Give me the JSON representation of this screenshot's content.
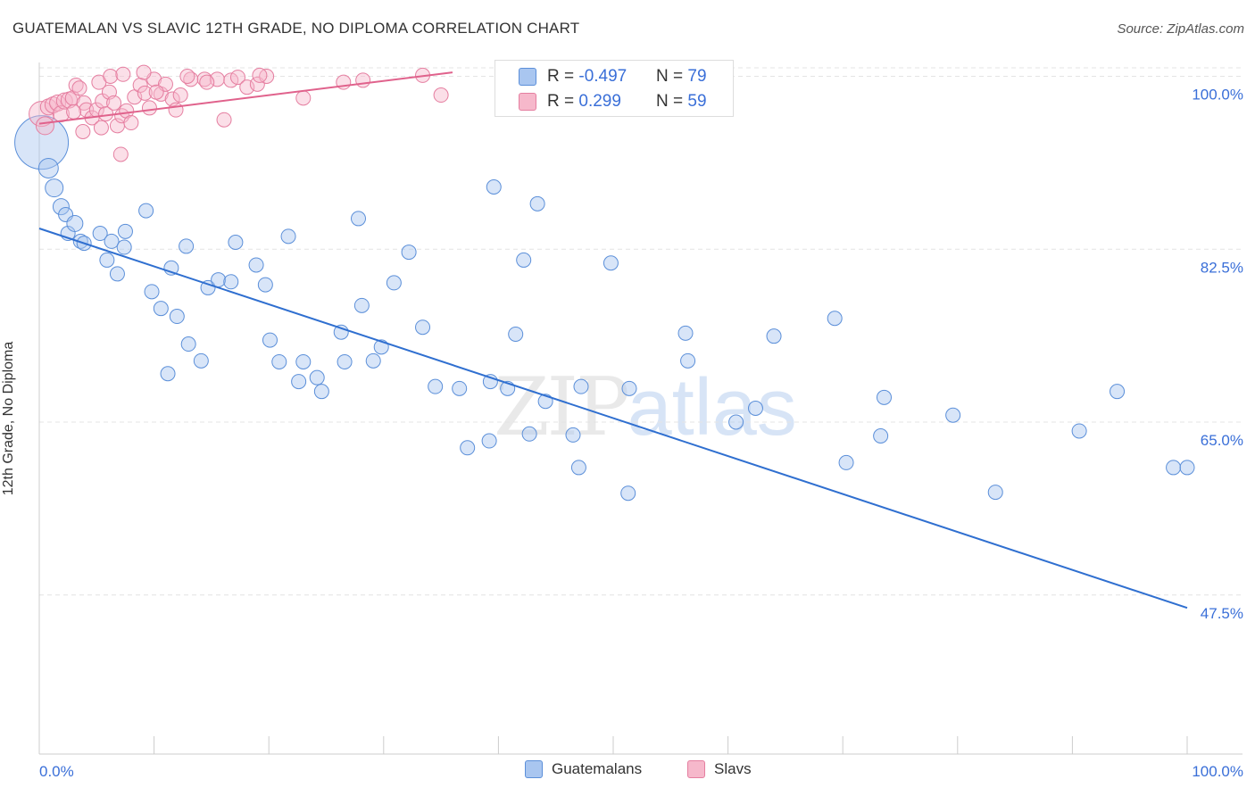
{
  "header": {
    "title": "GUATEMALAN VS SLAVIC 12TH GRADE, NO DIPLOMA CORRELATION CHART",
    "source": "Source: ZipAtlas.com"
  },
  "watermark": {
    "part1": "ZIP",
    "part2": "atlas"
  },
  "colors": {
    "blue_fill": "#a9c6f0",
    "blue_stroke": "#5b8fd9",
    "blue_line": "#2f6fd0",
    "pink_fill": "#f6b8cb",
    "pink_stroke": "#e57ea0",
    "pink_line": "#e0628c",
    "axis_text": "#3a6fd8",
    "grid": "#e4e4e4"
  },
  "stats": [
    {
      "label": "R = ",
      "r": "-0.497",
      "n_label": "N = ",
      "n": "79",
      "swatch": "blue"
    },
    {
      "label": "R = ",
      "r": "0.299",
      "n_label": "N = ",
      "n": "59",
      "swatch": "pink"
    }
  ],
  "chart_data": {
    "type": "scatter",
    "title": "GUATEMALAN VS SLAVIC 12TH GRADE, NO DIPLOMA CORRELATION CHART",
    "ylabel": "12th Grade, No Diploma",
    "xlabel": "",
    "x_tick_labels": [
      "0.0%",
      "100.0%"
    ],
    "y_tick_labels": [
      "100.0%",
      "82.5%",
      "65.0%",
      "47.5%"
    ],
    "y_ticks": [
      100.0,
      82.5,
      65.0,
      47.5
    ],
    "xlim": [
      0,
      100
    ],
    "ylim": [
      31.4,
      101.4
    ],
    "grid": true,
    "legend_placement": "bottom-center",
    "series": [
      {
        "name": "Guatemalans",
        "color": "blue",
        "trend": {
          "x": [
            0,
            100
          ],
          "y": [
            84.6,
            46.2
          ]
        },
        "points": [
          [
            0.2,
            93.3,
            30
          ],
          [
            0.8,
            90.7,
            11
          ],
          [
            1.3,
            88.7,
            10
          ],
          [
            1.9,
            86.8,
            9
          ],
          [
            2.3,
            86.0,
            8
          ],
          [
            2.5,
            84.1,
            8
          ],
          [
            3.1,
            85.1,
            9
          ],
          [
            3.6,
            83.3,
            8
          ],
          [
            3.9,
            83.1,
            8
          ],
          [
            5.3,
            84.1,
            8
          ],
          [
            6.3,
            83.3,
            8
          ],
          [
            7.5,
            84.3,
            8
          ],
          [
            5.9,
            81.4,
            8
          ],
          [
            6.8,
            80.0,
            8
          ],
          [
            7.4,
            82.7,
            8
          ],
          [
            9.3,
            86.4,
            8
          ],
          [
            9.8,
            78.2,
            8
          ],
          [
            10.6,
            76.5,
            8
          ],
          [
            11.5,
            80.6,
            8
          ],
          [
            12.0,
            75.7,
            8
          ],
          [
            12.8,
            82.8,
            8
          ],
          [
            13.0,
            72.9,
            8
          ],
          [
            14.1,
            71.2,
            8
          ],
          [
            11.2,
            69.9,
            8
          ],
          [
            14.7,
            78.6,
            8
          ],
          [
            15.6,
            79.4,
            8
          ],
          [
            16.7,
            79.2,
            8
          ],
          [
            17.1,
            83.2,
            8
          ],
          [
            18.9,
            80.9,
            8
          ],
          [
            19.7,
            78.9,
            8
          ],
          [
            20.1,
            73.3,
            8
          ],
          [
            20.9,
            71.1,
            8
          ],
          [
            21.7,
            83.8,
            8
          ],
          [
            22.6,
            69.1,
            8
          ],
          [
            23.0,
            71.1,
            8
          ],
          [
            24.2,
            69.5,
            8
          ],
          [
            24.6,
            68.1,
            8
          ],
          [
            26.6,
            71.1,
            8
          ],
          [
            26.3,
            74.1,
            8
          ],
          [
            27.8,
            85.6,
            8
          ],
          [
            28.1,
            76.8,
            8
          ],
          [
            29.1,
            71.2,
            8
          ],
          [
            29.8,
            72.6,
            8
          ],
          [
            30.9,
            79.1,
            8
          ],
          [
            32.2,
            82.2,
            8
          ],
          [
            33.4,
            74.6,
            8
          ],
          [
            34.5,
            68.6,
            8
          ],
          [
            36.6,
            68.4,
            8
          ],
          [
            37.3,
            62.4,
            8
          ],
          [
            39.6,
            88.8,
            8
          ],
          [
            39.2,
            63.1,
            8
          ],
          [
            39.3,
            69.1,
            8
          ],
          [
            40.8,
            68.4,
            8
          ],
          [
            41.5,
            73.9,
            8
          ],
          [
            42.2,
            81.4,
            8
          ],
          [
            42.7,
            63.8,
            8
          ],
          [
            43.4,
            87.1,
            8
          ],
          [
            44.1,
            67.1,
            8
          ],
          [
            46.5,
            63.7,
            8
          ],
          [
            47.0,
            60.4,
            8
          ],
          [
            47.2,
            68.6,
            8
          ],
          [
            49.8,
            81.1,
            8
          ],
          [
            51.3,
            57.8,
            8
          ],
          [
            51.4,
            68.4,
            8
          ],
          [
            56.5,
            71.2,
            8
          ],
          [
            56.3,
            74.0,
            8
          ],
          [
            60.7,
            65.0,
            8
          ],
          [
            62.4,
            66.4,
            8
          ],
          [
            64.0,
            73.7,
            8
          ],
          [
            69.3,
            75.5,
            8
          ],
          [
            70.3,
            60.9,
            8
          ],
          [
            73.3,
            63.6,
            8
          ],
          [
            73.6,
            67.5,
            8
          ],
          [
            79.6,
            65.7,
            8
          ],
          [
            83.3,
            57.9,
            8
          ],
          [
            90.6,
            64.1,
            8
          ],
          [
            93.9,
            68.1,
            8
          ],
          [
            98.8,
            60.4,
            8
          ],
          [
            100.0,
            60.4,
            8
          ]
        ]
      },
      {
        "name": "Slavs",
        "color": "pink",
        "trend": {
          "x": [
            0,
            36
          ],
          "y": [
            95.2,
            100.4
          ]
        },
        "points": [
          [
            0.2,
            96.2,
            14
          ],
          [
            0.5,
            95.0,
            10
          ],
          [
            0.8,
            96.9,
            9
          ],
          [
            1.2,
            97.1,
            9
          ],
          [
            1.6,
            97.3,
            9
          ],
          [
            1.9,
            96.2,
            9
          ],
          [
            2.2,
            97.5,
            9
          ],
          [
            2.6,
            97.6,
            9
          ],
          [
            2.9,
            97.8,
            8
          ],
          [
            3.2,
            99.1,
            8
          ],
          [
            3.5,
            98.8,
            8
          ],
          [
            3.9,
            97.3,
            8
          ],
          [
            4.1,
            96.6,
            8
          ],
          [
            4.6,
            95.8,
            8
          ],
          [
            5.0,
            96.6,
            8
          ],
          [
            5.5,
            97.5,
            8
          ],
          [
            5.8,
            96.2,
            8
          ],
          [
            6.1,
            98.4,
            8
          ],
          [
            6.5,
            97.3,
            8
          ],
          [
            6.8,
            95.0,
            8
          ],
          [
            7.2,
            96.0,
            8
          ],
          [
            7.6,
            96.5,
            8
          ],
          [
            8.0,
            95.3,
            8
          ],
          [
            8.3,
            97.9,
            8
          ],
          [
            8.8,
            99.1,
            8
          ],
          [
            9.2,
            98.3,
            8
          ],
          [
            9.6,
            96.8,
            8
          ],
          [
            10.0,
            99.7,
            8
          ],
          [
            10.6,
            98.2,
            8
          ],
          [
            11.0,
            99.2,
            8
          ],
          [
            11.6,
            97.7,
            8
          ],
          [
            11.9,
            96.6,
            8
          ],
          [
            12.3,
            98.1,
            8
          ],
          [
            13.2,
            99.7,
            8
          ],
          [
            14.4,
            99.7,
            8
          ],
          [
            15.5,
            99.7,
            8
          ],
          [
            16.7,
            99.6,
            8
          ],
          [
            17.3,
            99.9,
            8
          ],
          [
            18.1,
            98.9,
            8
          ],
          [
            19.0,
            99.2,
            8
          ],
          [
            19.8,
            100.0,
            8
          ],
          [
            3.0,
            96.4,
            8
          ],
          [
            5.2,
            99.4,
            8
          ],
          [
            6.2,
            100.0,
            8
          ],
          [
            7.3,
            100.2,
            8
          ],
          [
            9.1,
            100.4,
            8
          ],
          [
            10.2,
            98.4,
            8
          ],
          [
            12.9,
            100.0,
            8
          ],
          [
            14.6,
            99.4,
            8
          ],
          [
            16.1,
            95.6,
            8
          ],
          [
            19.2,
            100.1,
            8
          ],
          [
            23.0,
            97.8,
            8
          ],
          [
            26.5,
            99.4,
            8
          ],
          [
            28.2,
            99.6,
            8
          ],
          [
            33.4,
            100.1,
            8
          ],
          [
            35.0,
            98.1,
            8
          ],
          [
            3.8,
            94.4,
            8
          ],
          [
            5.4,
            94.8,
            8
          ],
          [
            7.1,
            92.1,
            8
          ]
        ]
      }
    ]
  },
  "legend": {
    "items": [
      {
        "label": "Guatemalans",
        "swatch": "blue"
      },
      {
        "label": "Slavs",
        "swatch": "pink"
      }
    ]
  }
}
